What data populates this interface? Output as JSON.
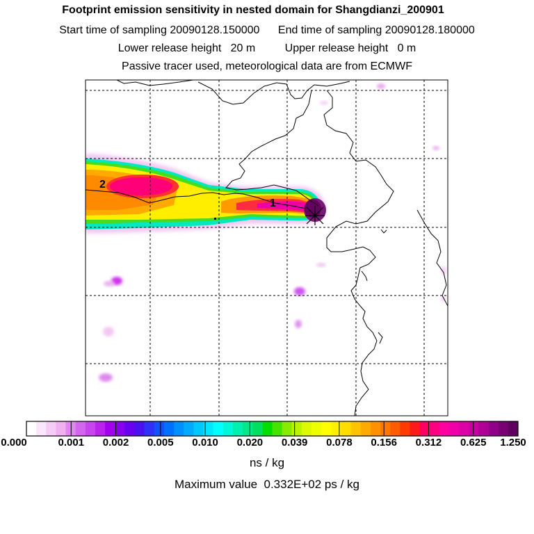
{
  "header": {
    "title": "Footprint emission sensitivity in nested domain for Shangdianzi_200901",
    "start_label": "Start time of sampling",
    "start_value": "20090128.150000",
    "end_label": "End time of sampling",
    "end_value": "20090128.180000",
    "lower_label": "Lower release height",
    "lower_value": "20 m",
    "upper_label": "Upper release height",
    "upper_value": "0 m",
    "note": "Passive tracer used, meteorological data are from ECMWF"
  },
  "map": {
    "markers": [
      "1",
      "2"
    ]
  },
  "colorbar": {
    "tick_labels": [
      "0.000",
      "0.001",
      "0.002",
      "0.005",
      "0.010",
      "0.020",
      "0.039",
      "0.078",
      "0.156",
      "0.312",
      "0.625",
      "1.250"
    ],
    "colors": [
      "#ffffff",
      "#fbe6fb",
      "#f5ccf5",
      "#eeb0ee",
      "#de88ee",
      "#d266ee",
      "#c844ee",
      "#bb22ee",
      "#a400f0",
      "#8800f0",
      "#6a00f0",
      "#4a10f0",
      "#3030f8",
      "#1450ff",
      "#0070ff",
      "#0090ff",
      "#00aaff",
      "#00c8ff",
      "#00e6ff",
      "#00ffff",
      "#00f8d8",
      "#00f0b0",
      "#00e888",
      "#00e060",
      "#00dd00",
      "#44e400",
      "#88ec00",
      "#bbf400",
      "#ddfa00",
      "#eeff00",
      "#ffff00",
      "#fff000",
      "#ffdd00",
      "#ffc400",
      "#ffaa00",
      "#ff9000",
      "#ff7700",
      "#ff5c00",
      "#ff3a00",
      "#ff1a1a",
      "#ff0060",
      "#ff0080",
      "#ff00a0",
      "#f000a8",
      "#dd00a8",
      "#c800a0",
      "#b00095",
      "#900088",
      "#780070",
      "#600060"
    ],
    "unit": "ns / kg",
    "max_label": "Maximum value",
    "max_value": "0.332E+02 ps / kg"
  }
}
